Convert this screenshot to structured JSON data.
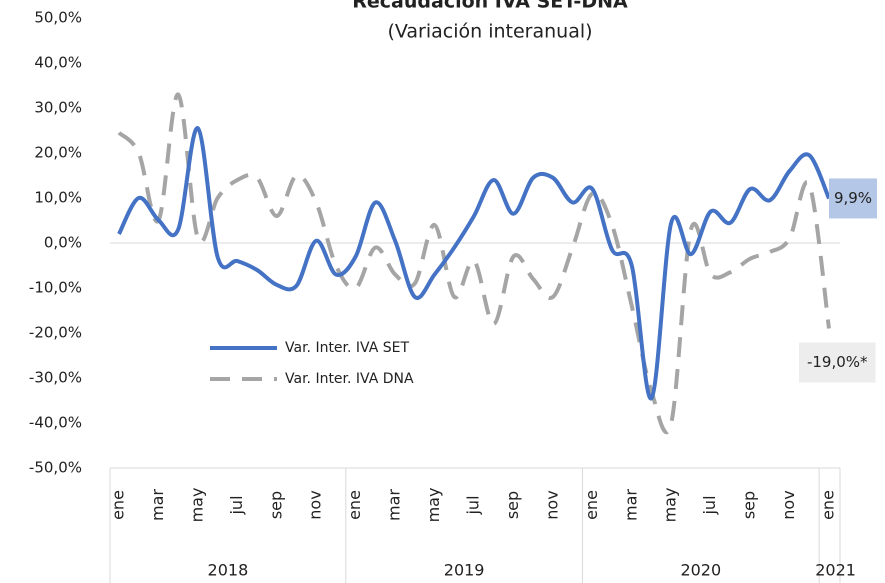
{
  "chart_data": {
    "type": "line",
    "title": "Recaudación IVA  SET-DNA",
    "subtitle": "(Variación interanual)",
    "categories": [
      "ene",
      null,
      "mar",
      null,
      "may",
      null,
      "jul",
      null,
      "sep",
      null,
      "nov",
      null,
      "ene",
      null,
      "mar",
      null,
      "may",
      null,
      "jul",
      null,
      "sep",
      null,
      "nov",
      null,
      "ene",
      null,
      "mar",
      null,
      "may",
      null,
      "jul",
      null,
      "sep",
      null,
      "nov",
      null,
      "ene"
    ],
    "years": [
      "2018",
      "2019",
      "2020",
      "2021"
    ],
    "series": [
      {
        "name": "Var. Inter. IVA SET",
        "color": "#4472c4",
        "dash": false,
        "values": [
          2.0,
          10.0,
          5.1,
          3.0,
          25.5,
          -3.1,
          -4.0,
          -6.0,
          -9.3,
          -9.5,
          0.5,
          -7.0,
          -3.0,
          9.0,
          0.5,
          -12.0,
          -7.0,
          -1.0,
          6.0,
          14.0,
          6.5,
          14.5,
          14.5,
          9.0,
          12.0,
          -1.5,
          -5.0,
          -34.5,
          4.5,
          -2.5,
          7.0,
          4.5,
          12.0,
          9.5,
          16.0,
          19.5,
          9.9
        ],
        "value_labels": [
          null,
          null,
          null,
          null,
          null,
          null,
          null,
          null,
          null,
          null,
          null,
          null,
          null,
          null,
          null,
          null,
          null,
          null,
          null,
          null,
          null,
          null,
          null,
          null,
          null,
          null,
          null,
          null,
          null,
          null,
          null,
          null,
          null,
          null,
          null,
          null,
          "9,9%"
        ],
        "label_color": "#b4c7e7"
      },
      {
        "name": "Var. Inter. IVA DNA",
        "color": "#a5a5a5",
        "dash": true,
        "values": [
          24.5,
          20.0,
          5.0,
          33.0,
          1.0,
          10.0,
          14.0,
          14.5,
          6.0,
          15.0,
          9.0,
          -5.0,
          -10.0,
          -1.0,
          -7.0,
          -9.0,
          4.0,
          -12.0,
          -4.0,
          -18.0,
          -3.0,
          -8.0,
          -12.0,
          -1.0,
          11.0,
          4.0,
          -14.0,
          -33.0,
          -40.0,
          3.0,
          -7.0,
          -6.5,
          -3.5,
          -2.0,
          1.0,
          13.0,
          -19.0
        ],
        "value_labels": [
          null,
          null,
          null,
          null,
          null,
          null,
          null,
          null,
          null,
          null,
          null,
          null,
          null,
          null,
          null,
          null,
          null,
          null,
          null,
          null,
          null,
          null,
          null,
          null,
          null,
          null,
          null,
          null,
          null,
          null,
          null,
          null,
          null,
          null,
          null,
          null,
          "-19,0%*"
        ],
        "label_color": "#ededed"
      }
    ],
    "ylim": [
      -50,
      50
    ],
    "yticks": [
      {
        "value": -50,
        "label": "-50,0%"
      },
      {
        "value": -40,
        "label": "-40,0%"
      },
      {
        "value": -30,
        "label": "-30,0%"
      },
      {
        "value": -20,
        "label": "-20,0%"
      },
      {
        "value": -10,
        "label": "-10,0%"
      },
      {
        "value": 0,
        "label": "0,0%"
      },
      {
        "value": 10,
        "label": "10,0%"
      },
      {
        "value": 20,
        "label": "20,0%"
      },
      {
        "value": 30,
        "label": "30,0%"
      },
      {
        "value": 40,
        "label": "40,0%"
      },
      {
        "value": 50,
        "label": "50,0%"
      }
    ]
  }
}
